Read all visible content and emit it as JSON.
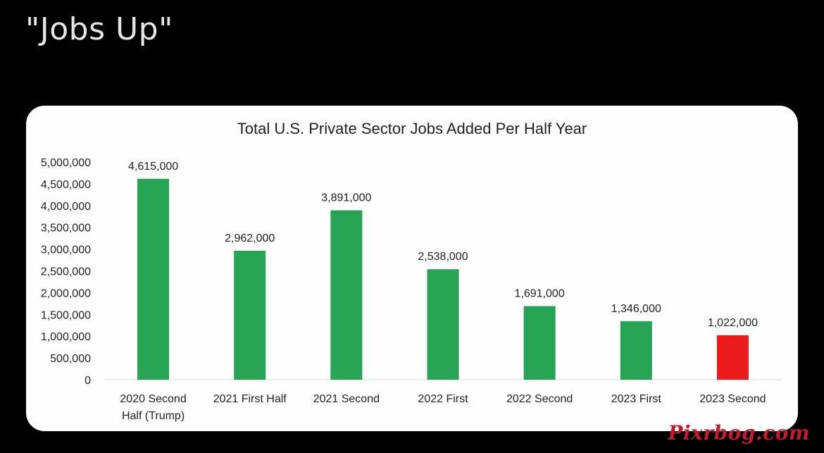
{
  "headline": "\"Jobs Up\"",
  "watermark": "Pixrbog.com",
  "colors": {
    "default_bar": "#26a454",
    "highlight_bar": "#ec1b1b",
    "axis": "#d9d9d9",
    "text": "#222222"
  },
  "chart_data": {
    "type": "bar",
    "title": "Total U.S. Private Sector Jobs Added Per Half Year",
    "xlabel": "",
    "ylabel": "",
    "ylim": [
      0,
      5000000
    ],
    "yticks": [
      "5,000,000",
      "4,500,000",
      "4,000,000",
      "3,500,000",
      "3,000,000",
      "2,500,000",
      "2,000,000",
      "1,500,000",
      "1,000,000",
      "500,000",
      "0"
    ],
    "ytick_values": [
      5000000,
      4500000,
      4000000,
      3500000,
      3000000,
      2500000,
      2000000,
      1500000,
      1000000,
      500000,
      0
    ],
    "grid": false,
    "categories": [
      [
        "2020 Second",
        "Half (Trump)"
      ],
      [
        "2021 First Half"
      ],
      [
        "2021 Second"
      ],
      [
        "2022 First"
      ],
      [
        "2022 Second"
      ],
      [
        "2023 First"
      ],
      [
        "2023 Second"
      ]
    ],
    "values": [
      4615000,
      2962000,
      3891000,
      2538000,
      1691000,
      1346000,
      1022000
    ],
    "data_labels": [
      "4,615,000",
      "2,962,000",
      "3,891,000",
      "2,538,000",
      "1,691,000",
      "1,346,000",
      "1,022,000"
    ],
    "highlight_index": 6
  }
}
